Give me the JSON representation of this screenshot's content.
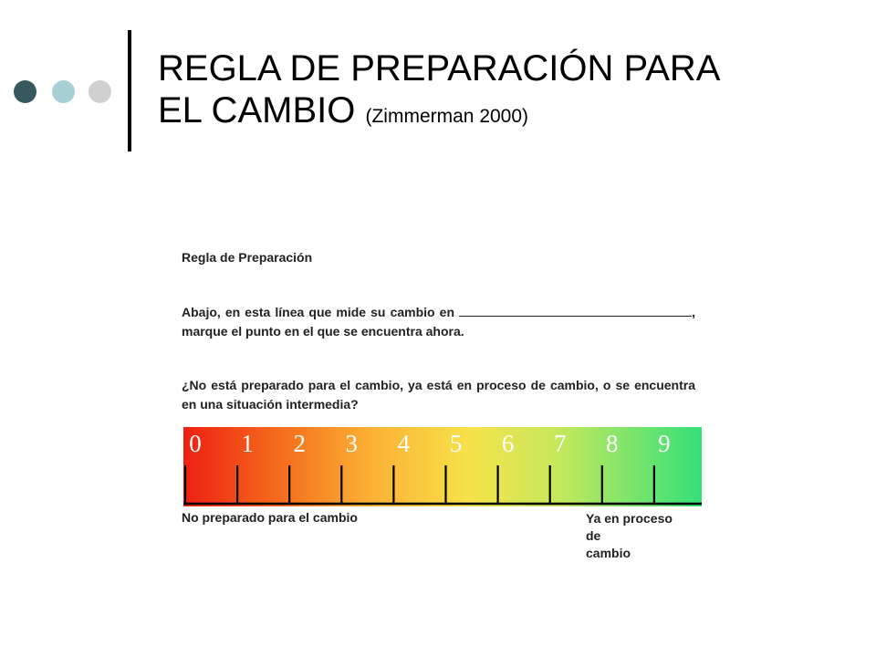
{
  "colors": {
    "dot_1": "#35595e",
    "dot_2": "#a7d0d4",
    "dot_3": "#d0d0d0",
    "accent_bar": "#000000",
    "scale_start": "#ee1f12",
    "scale_end": "#33e07a"
  },
  "slide": {
    "title": "REGLA DE PREPARACIÓN PARA EL CAMBIO",
    "title_line_1": "REGLA DE PREPARACIÓN PARA",
    "title_line_2": "EL CAMBIO",
    "subtitle": "(Zimmerman 2000)"
  },
  "figure": {
    "heading": "Regla de Preparación",
    "paragraph_1_a": "Abajo, en esta línea que mide su cambio en",
    "paragraph_1_b": ", marque el punto en el que se encuentra ahora.",
    "paragraph_2": "¿No está preparado para el cambio, ya está en proceso de cambio, o se encuentra en una situación intermedia?",
    "scale": {
      "min": 0,
      "max": 9,
      "numbers": [
        "0",
        "1",
        "2",
        "3",
        "4",
        "5",
        "6",
        "7",
        "8",
        "9"
      ]
    },
    "label_left": "No preparado para el cambio",
    "label_right_lines": [
      "Ya en proceso",
      "de",
      "cambio"
    ]
  }
}
